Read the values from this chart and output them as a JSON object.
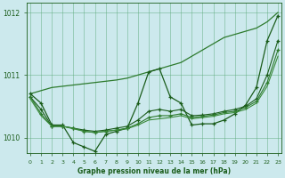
{
  "x": [
    0,
    1,
    2,
    3,
    4,
    5,
    6,
    7,
    8,
    9,
    10,
    11,
    12,
    13,
    14,
    15,
    16,
    17,
    18,
    19,
    20,
    21,
    22,
    23
  ],
  "series": [
    {
      "name": "trend_line",
      "y": [
        1010.7,
        1010.75,
        1010.8,
        1010.82,
        1010.84,
        1010.86,
        1010.88,
        1010.9,
        1010.92,
        1010.95,
        1011.0,
        1011.05,
        1011.1,
        1011.15,
        1011.2,
        1011.3,
        1011.4,
        1011.5,
        1011.6,
        1011.65,
        1011.7,
        1011.75,
        1011.85,
        1012.0
      ],
      "color": "#2d7a2d",
      "linewidth": 0.9,
      "marker": null,
      "markersize": 0
    },
    {
      "name": "jagged_main",
      "y": [
        1010.7,
        1010.55,
        1010.2,
        1010.2,
        1009.92,
        1009.85,
        1009.78,
        1010.05,
        1010.1,
        1010.15,
        1010.55,
        1011.05,
        1011.1,
        1010.65,
        1010.55,
        1010.2,
        1010.22,
        1010.22,
        1010.28,
        1010.38,
        1010.52,
        1010.8,
        1011.55,
        1011.95
      ],
      "color": "#1a5c1a",
      "linewidth": 0.9,
      "marker": "+",
      "markersize": 3
    },
    {
      "name": "jagged_2",
      "y": [
        1010.65,
        1010.45,
        1010.18,
        1010.18,
        1010.15,
        1010.12,
        1010.1,
        1010.12,
        1010.15,
        1010.18,
        1010.28,
        1010.42,
        1010.45,
        1010.42,
        1010.45,
        1010.35,
        1010.36,
        1010.38,
        1010.42,
        1010.45,
        1010.5,
        1010.62,
        1011.0,
        1011.55
      ],
      "color": "#1a5c1a",
      "linewidth": 0.8,
      "marker": "+",
      "markersize": 3
    },
    {
      "name": "flat_low",
      "y": [
        1010.65,
        1010.38,
        1010.18,
        1010.18,
        1010.15,
        1010.1,
        1010.08,
        1010.1,
        1010.12,
        1010.15,
        1010.22,
        1010.32,
        1010.35,
        1010.35,
        1010.38,
        1010.32,
        1010.34,
        1010.36,
        1010.4,
        1010.42,
        1010.48,
        1010.58,
        1010.88,
        1011.4
      ],
      "color": "#2d7a2d",
      "linewidth": 0.8,
      "marker": "+",
      "markersize": 3
    },
    {
      "name": "smooth_low",
      "y": [
        1010.62,
        1010.35,
        1010.18,
        1010.18,
        1010.14,
        1010.1,
        1010.08,
        1010.1,
        1010.12,
        1010.14,
        1010.2,
        1010.28,
        1010.3,
        1010.32,
        1010.35,
        1010.3,
        1010.32,
        1010.34,
        1010.38,
        1010.4,
        1010.45,
        1010.55,
        1010.82,
        1011.3
      ],
      "color": "#3a8a3a",
      "linewidth": 0.8,
      "marker": null,
      "markersize": 0
    }
  ],
  "ylim": [
    1009.75,
    1012.15
  ],
  "xlim": [
    -0.3,
    23.3
  ],
  "yticks": [
    1010,
    1011,
    1012
  ],
  "xticks": [
    0,
    1,
    2,
    3,
    4,
    5,
    6,
    7,
    8,
    9,
    10,
    11,
    12,
    13,
    14,
    15,
    16,
    17,
    18,
    19,
    20,
    21,
    22,
    23
  ],
  "xlabel": "Graphe pression niveau de la mer (hPa)",
  "bg_color": "#cce9ed",
  "grid_color": "#5baa7a",
  "line_color": "#1a5c1a",
  "label_color": "#1a5c1a"
}
